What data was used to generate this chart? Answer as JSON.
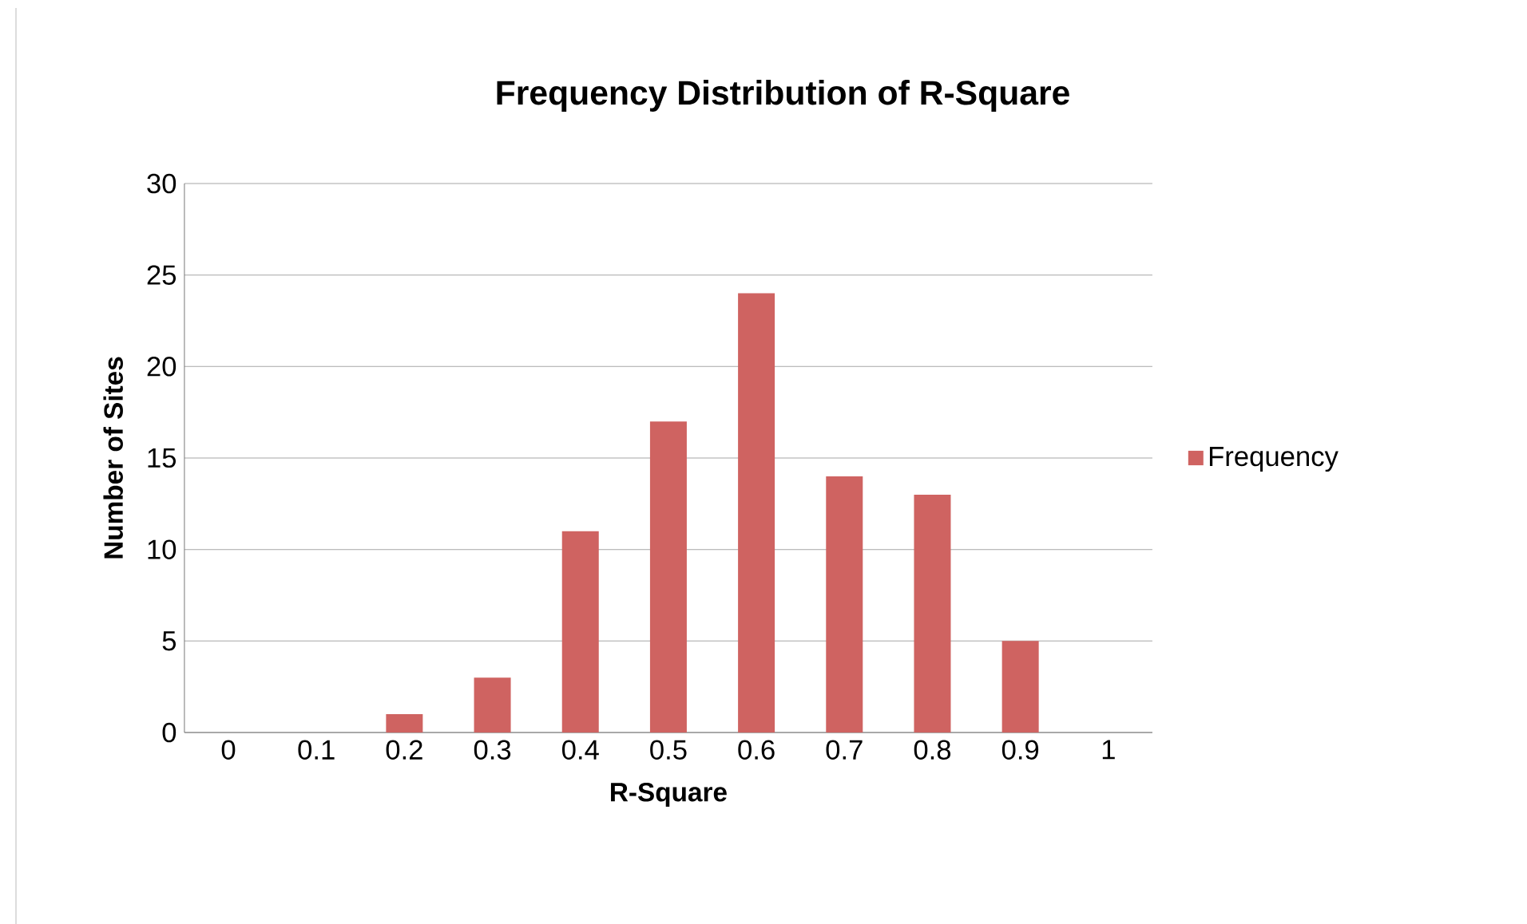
{
  "chart_data": {
    "type": "bar",
    "title": "Frequency Distribution of R-Square",
    "xlabel": "R-Square",
    "ylabel": "Number of Sites",
    "categories": [
      "0",
      "0.1",
      "0.2",
      "0.3",
      "0.4",
      "0.5",
      "0.6",
      "0.7",
      "0.8",
      "0.9",
      "1"
    ],
    "series": [
      {
        "name": "Frequency",
        "color": "#cf6361",
        "values": [
          0,
          0,
          1,
          3,
          11,
          17,
          24,
          14,
          13,
          5,
          0
        ]
      }
    ],
    "ylim": [
      0,
      30
    ],
    "yticks": [
      0,
      5,
      10,
      15,
      20,
      25,
      30
    ],
    "grid": "y",
    "legend": "right"
  }
}
